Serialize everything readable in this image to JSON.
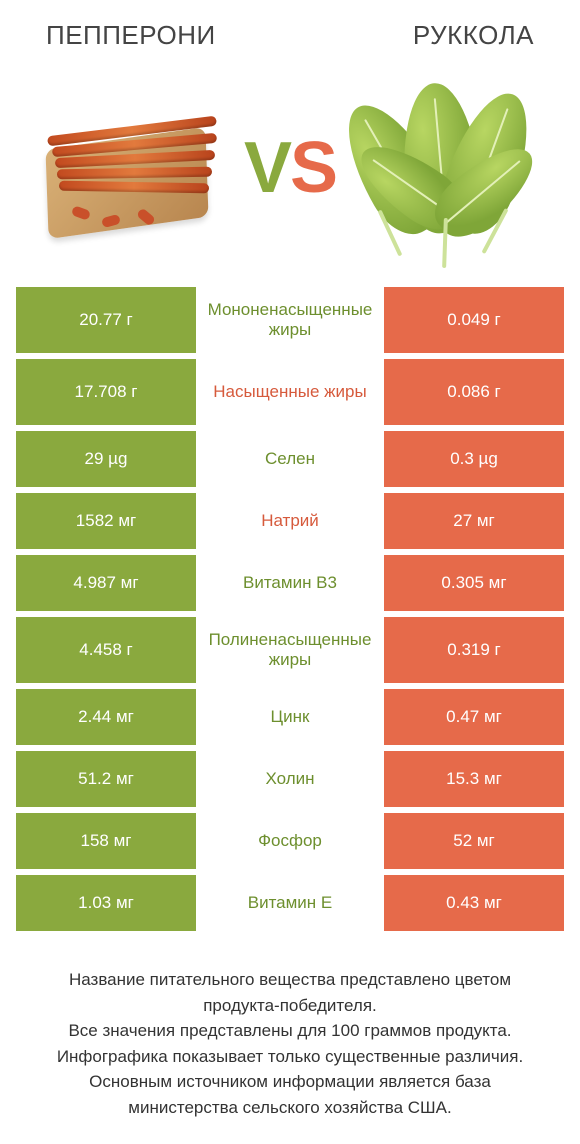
{
  "colors": {
    "green": "#8aa93e",
    "orange": "#e66a4a",
    "green_text": "#6d8f2e",
    "orange_text": "#d65a3c",
    "body_text": "#333333",
    "title_text": "#444444",
    "background": "#ffffff"
  },
  "typography": {
    "title_fontsize": 26,
    "vs_fontsize": 72,
    "cell_fontsize": 17,
    "footer_fontsize": 17
  },
  "header": {
    "left_title": "ПЕППЕРОНИ",
    "right_title": "РУККОЛА",
    "vs_v": "V",
    "vs_s": "S"
  },
  "comparison": {
    "type": "table",
    "left_column_label": "Пепперони",
    "right_column_label": "Руккола",
    "left_color": "#8aa93e",
    "right_color": "#e66a4a",
    "rows": [
      {
        "left": "20.77 г",
        "label": "Мононенасыщенные жиры",
        "right": "0.049 г",
        "winner": "left",
        "tall": true
      },
      {
        "left": "17.708 г",
        "label": "Насыщенные жиры",
        "right": "0.086 г",
        "winner": "right",
        "tall": true
      },
      {
        "left": "29 µg",
        "label": "Селен",
        "right": "0.3 µg",
        "winner": "left",
        "tall": false
      },
      {
        "left": "1582 мг",
        "label": "Натрий",
        "right": "27 мг",
        "winner": "right",
        "tall": false
      },
      {
        "left": "4.987 мг",
        "label": "Витамин B3",
        "right": "0.305 мг",
        "winner": "left",
        "tall": false
      },
      {
        "left": "4.458 г",
        "label": "Полиненасыщенные жиры",
        "right": "0.319 г",
        "winner": "left",
        "tall": true
      },
      {
        "left": "2.44 мг",
        "label": "Цинк",
        "right": "0.47 мг",
        "winner": "left",
        "tall": false
      },
      {
        "left": "51.2 мг",
        "label": "Холин",
        "right": "15.3 мг",
        "winner": "left",
        "tall": false
      },
      {
        "left": "158 мг",
        "label": "Фосфор",
        "right": "52 мг",
        "winner": "left",
        "tall": false
      },
      {
        "left": "1.03 мг",
        "label": "Витамин E",
        "right": "0.43 мг",
        "winner": "left",
        "tall": false
      }
    ]
  },
  "footer": {
    "line1": "Название питательного вещества представлено цветом продукта-победителя.",
    "line2": "Все значения представлены для 100 граммов продукта.",
    "line3": "Инфографика показывает только существенные различия.",
    "line4": "Основным источником информации является база министерства сельского хозяйства США."
  }
}
